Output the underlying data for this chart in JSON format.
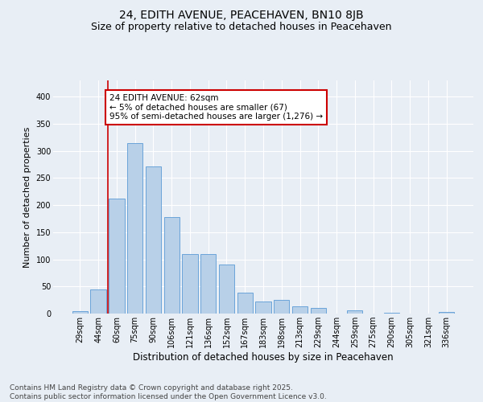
{
  "title1": "24, EDITH AVENUE, PEACEHAVEN, BN10 8JB",
  "title2": "Size of property relative to detached houses in Peacehaven",
  "xlabel": "Distribution of detached houses by size in Peacehaven",
  "ylabel": "Number of detached properties",
  "categories": [
    "29sqm",
    "44sqm",
    "60sqm",
    "75sqm",
    "90sqm",
    "106sqm",
    "121sqm",
    "136sqm",
    "152sqm",
    "167sqm",
    "183sqm",
    "198sqm",
    "213sqm",
    "229sqm",
    "244sqm",
    "259sqm",
    "275sqm",
    "290sqm",
    "305sqm",
    "321sqm",
    "336sqm"
  ],
  "values": [
    5,
    45,
    212,
    315,
    272,
    178,
    110,
    110,
    90,
    38,
    22,
    25,
    14,
    10,
    0,
    6,
    0,
    2,
    0,
    0,
    3
  ],
  "bar_color": "#b8d0e8",
  "bar_edge_color": "#5b9bd5",
  "annotation_text": "24 EDITH AVENUE: 62sqm\n← 5% of detached houses are smaller (67)\n95% of semi-detached houses are larger (1,276) →",
  "annotation_box_color": "#ffffff",
  "annotation_box_edge_color": "#cc0000",
  "vline_x": 1.5,
  "vline_color": "#cc0000",
  "background_color": "#e8eef5",
  "plot_bg_color": "#e8eef5",
  "footer_text": "Contains HM Land Registry data © Crown copyright and database right 2025.\nContains public sector information licensed under the Open Government Licence v3.0.",
  "ylim": [
    0,
    430
  ],
  "grid_color": "#ffffff",
  "title1_fontsize": 10,
  "title2_fontsize": 9,
  "xlabel_fontsize": 8.5,
  "ylabel_fontsize": 8,
  "tick_fontsize": 7,
  "annotation_fontsize": 7.5,
  "footer_fontsize": 6.5,
  "yticks": [
    0,
    50,
    100,
    150,
    200,
    250,
    300,
    350,
    400
  ]
}
